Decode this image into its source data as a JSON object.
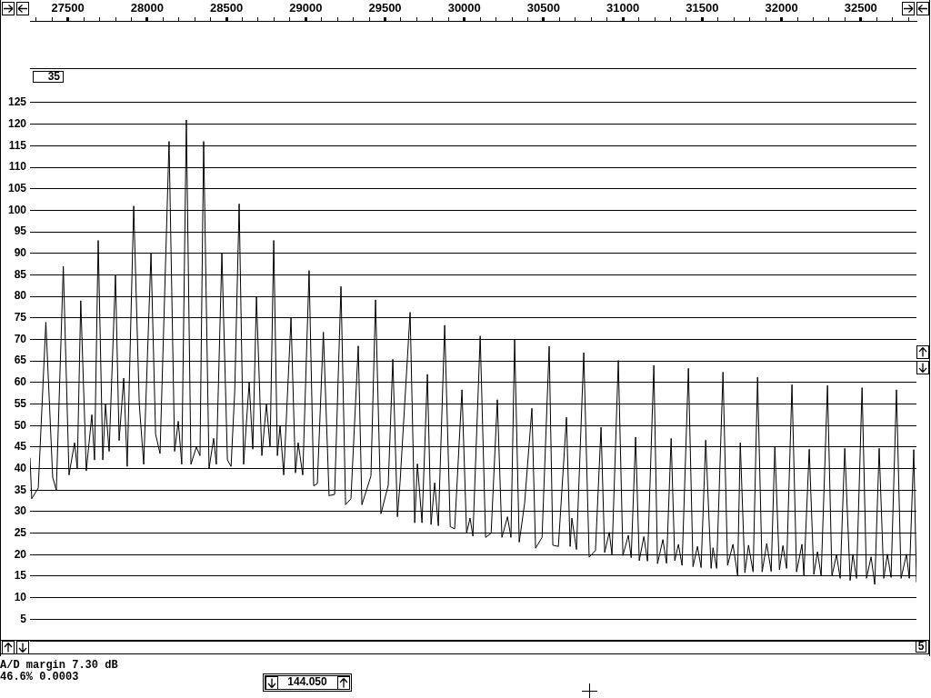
{
  "chart_data": {
    "type": "line",
    "xlim": [
      27261,
      32851
    ],
    "ylim": [
      0,
      144
    ],
    "xticks": [
      {
        "value": 27300,
        "label": null
      },
      {
        "value": 27400,
        "label": null
      },
      27500,
      {
        "value": 27600,
        "label": null
      },
      {
        "value": 27700,
        "label": null
      },
      {
        "value": 27800,
        "label": null
      },
      {
        "value": 27900,
        "label": null
      },
      28000,
      {
        "value": 28100,
        "label": null
      },
      {
        "value": 28200,
        "label": null
      },
      {
        "value": 28300,
        "label": null
      },
      {
        "value": 28400,
        "label": null
      },
      28500,
      {
        "value": 28600,
        "label": null
      },
      {
        "value": 28700,
        "label": null
      },
      {
        "value": 28800,
        "label": null
      },
      {
        "value": 28900,
        "label": null
      },
      29000,
      {
        "value": 29100,
        "label": null
      },
      {
        "value": 29200,
        "label": null
      },
      {
        "value": 29300,
        "label": null
      },
      {
        "value": 29400,
        "label": null
      },
      29500,
      {
        "value": 29600,
        "label": null
      },
      {
        "value": 29700,
        "label": null
      },
      {
        "value": 29800,
        "label": null
      },
      {
        "value": 29900,
        "label": null
      },
      30000,
      {
        "value": 30100,
        "label": null
      },
      {
        "value": 30200,
        "label": null
      },
      {
        "value": 30300,
        "label": null
      },
      {
        "value": 30400,
        "label": null
      },
      30500,
      {
        "value": 30600,
        "label": null
      },
      {
        "value": 30700,
        "label": null
      },
      {
        "value": 30800,
        "label": null
      },
      {
        "value": 30900,
        "label": null
      },
      31000,
      {
        "value": 31100,
        "label": null
      },
      {
        "value": 31200,
        "label": null
      },
      {
        "value": 31300,
        "label": null
      },
      {
        "value": 31400,
        "label": null
      },
      31500,
      {
        "value": 31600,
        "label": null
      },
      {
        "value": 31700,
        "label": null
      },
      {
        "value": 31800,
        "label": null
      },
      {
        "value": 31900,
        "label": null
      },
      32000,
      {
        "value": 32100,
        "label": null
      },
      {
        "value": 32200,
        "label": null
      },
      {
        "value": 32300,
        "label": null
      },
      {
        "value": 32400,
        "label": null
      },
      32500,
      {
        "value": 32600,
        "label": null
      },
      {
        "value": 32700,
        "label": null
      },
      {
        "value": 32800,
        "label": null
      }
    ],
    "yticks": [
      {
        "value": 0,
        "label": null
      },
      5,
      10,
      15,
      20,
      25,
      30,
      35,
      40,
      45,
      50,
      55,
      60,
      65,
      70,
      75,
      80,
      85,
      90,
      95,
      100,
      105,
      110,
      115,
      120,
      125
    ],
    "grid": "y",
    "marker": "none",
    "line_style": "solid",
    "x": [
      27261,
      27272,
      27313,
      27361,
      27404,
      27427,
      27471,
      27507,
      27542,
      27559,
      27581,
      27616,
      27651,
      27668,
      27691,
      27720,
      27737,
      27760,
      27800,
      27823,
      27852,
      27874,
      27915,
      27950,
      27978,
      28024,
      28053,
      28081,
      28138,
      28173,
      28196,
      28218,
      28247,
      28276,
      28310,
      28333,
      28356,
      28390,
      28419,
      28436,
      28471,
      28506,
      28529,
      28552,
      28580,
      28608,
      28643,
      28666,
      28689,
      28723,
      28752,
      28775,
      28798,
      28821,
      28838,
      28861,
      28907,
      28935,
      28952,
      28981,
      29021,
      29050,
      29073,
      29111,
      29147,
      29182,
      29222,
      29251,
      29285,
      29331,
      29354,
      29411,
      29440,
      29474,
      29520,
      29549,
      29578,
      29595,
      29658,
      29687,
      29704,
      29733,
      29767,
      29790,
      29813,
      29836,
      29876,
      29911,
      29939,
      29985,
      30014,
      30036,
      30054,
      30100,
      30134,
      30169,
      30208,
      30237,
      30272,
      30294,
      30317,
      30346,
      30380,
      30426,
      30449,
      30490,
      30535,
      30558,
      30593,
      30644,
      30667,
      30678,
      30707,
      30753,
      30787,
      30827,
      30862,
      30885,
      30914,
      30931,
      30971,
      31000,
      31034,
      31052,
      31080,
      31103,
      31132,
      31155,
      31195,
      31218,
      31252,
      31275,
      31304,
      31327,
      31350,
      31373,
      31413,
      31442,
      31470,
      31493,
      31522,
      31556,
      31568,
      31591,
      31631,
      31660,
      31694,
      31723,
      31740,
      31769,
      31792,
      31821,
      31849,
      31878,
      31907,
      31935,
      31958,
      31987,
      32009,
      32032,
      32066,
      32095,
      32129,
      32141,
      32175,
      32204,
      32227,
      32250,
      32290,
      32318,
      32347,
      32370,
      32399,
      32433,
      32450,
      32473,
      32508,
      32536,
      32565,
      32588,
      32616,
      32645,
      32668,
      32691,
      32725,
      32754,
      32788,
      32806,
      32834,
      32851
    ],
    "series": [
      {
        "color": "#000000",
        "values": [
          42.5,
          33,
          35.5,
          74,
          38,
          35,
          87,
          38.5,
          46,
          40,
          79,
          39.5,
          52.5,
          42,
          93,
          42,
          55,
          44,
          85,
          46.5,
          61,
          40.5,
          101,
          55,
          41,
          90,
          48,
          43.5,
          116,
          44,
          51,
          41,
          121,
          41,
          45,
          43,
          116,
          40,
          47,
          41,
          90,
          42,
          40.5,
          58,
          101.5,
          41,
          60,
          44.5,
          80,
          43,
          55,
          45,
          93,
          43,
          50,
          38.5,
          75,
          39,
          46,
          38.5,
          86,
          36,
          36.5,
          71.7,
          33.7,
          34,
          82.3,
          31.6,
          33,
          68.5,
          31.6,
          38.3,
          79.2,
          29.5,
          36.1,
          65.4,
          28.8,
          37,
          76.3,
          27.4,
          41.1,
          27.4,
          61.9,
          27,
          36.7,
          26.7,
          73.3,
          26.5,
          26,
          58.3,
          25,
          28.5,
          24.3,
          70.8,
          24,
          25,
          56,
          24,
          28.8,
          24,
          69.9,
          22.9,
          31.9,
          54,
          21.5,
          24,
          68.4,
          22.2,
          21.9,
          51.9,
          21.9,
          28.5,
          21.2,
          66.9,
          19.4,
          21,
          49.6,
          20.5,
          25.2,
          20,
          65.1,
          19.8,
          24.5,
          19.3,
          47.3,
          18.6,
          24.2,
          18.5,
          64,
          17.9,
          23.5,
          18,
          47,
          18.6,
          22.4,
          17.5,
          63.3,
          17.2,
          21.9,
          17,
          46.6,
          16.8,
          21.6,
          16.8,
          62.4,
          17.5,
          22.4,
          15.2,
          46,
          15.8,
          22.2,
          16,
          61.2,
          16,
          22.6,
          16.1,
          45.1,
          16.5,
          22.1,
          16.8,
          59.5,
          16,
          22.4,
          15.2,
          44.5,
          15.4,
          20.7,
          15,
          59.3,
          15,
          20,
          14.5,
          44.7,
          14,
          20.1,
          14.5,
          58.8,
          14.5,
          19.5,
          13.1,
          44.7,
          14.5,
          20.1,
          14.7,
          58.3,
          14.5,
          20.1,
          14.5,
          44.4,
          13.6
        ]
      }
    ],
    "annotations": [
      "35",
      "A/D margin 7.30 dB",
      "46.6% 0.0003",
      "144.050",
      "5"
    ]
  }
}
